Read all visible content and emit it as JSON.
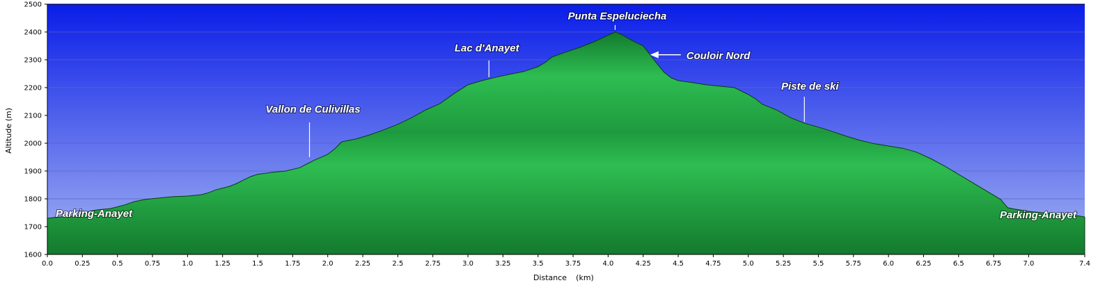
{
  "chart_data": {
    "type": "area",
    "xlabel": "Distance",
    "xunit": "(km)",
    "ylabel": "Altitude (m)",
    "xlim": [
      0,
      7.4
    ],
    "ylim": [
      1600,
      2500
    ],
    "x_ticks": [
      "0.0",
      "0.25",
      "0.5",
      "0.75",
      "1.0",
      "1.25",
      "1.5",
      "1.75",
      "2.0",
      "2.25",
      "2.5",
      "2.75",
      "3.0",
      "3.25",
      "3.5",
      "3.75",
      "4.0",
      "4.25",
      "4.5",
      "4.75",
      "5.0",
      "5.25",
      "5.5",
      "5.75",
      "6.0",
      "6.25",
      "6.5",
      "6.75",
      "7.0",
      "7.4"
    ],
    "x_tick_values": [
      0,
      0.25,
      0.5,
      0.75,
      1.0,
      1.25,
      1.5,
      1.75,
      2.0,
      2.25,
      2.5,
      2.75,
      3.0,
      3.25,
      3.5,
      3.75,
      4.0,
      4.25,
      4.5,
      4.75,
      5.0,
      5.25,
      5.5,
      5.75,
      6.0,
      6.25,
      6.5,
      6.75,
      7.0,
      7.4
    ],
    "y_ticks": [
      1600,
      1700,
      1800,
      1900,
      2000,
      2100,
      2200,
      2300,
      2400,
      2500
    ],
    "grid": true,
    "colors": {
      "sky_top": "#0a1de8",
      "sky_bottom": "#a4b4f2",
      "fill_light": "#2ebd52",
      "fill_dark": "#137a2e",
      "outline": "#0a3a12",
      "grid": "#5a63c4"
    },
    "x": [
      0.0,
      0.05,
      0.1,
      0.2,
      0.3,
      0.35,
      0.45,
      0.55,
      0.62,
      0.7,
      0.8,
      0.9,
      1.0,
      1.1,
      1.15,
      1.2,
      1.3,
      1.35,
      1.4,
      1.45,
      1.5,
      1.6,
      1.7,
      1.8,
      1.85,
      1.9,
      2.0,
      2.05,
      2.1,
      2.2,
      2.3,
      2.4,
      2.5,
      2.6,
      2.7,
      2.8,
      2.9,
      3.0,
      3.1,
      3.2,
      3.3,
      3.4,
      3.5,
      3.55,
      3.6,
      3.7,
      3.8,
      3.9,
      4.0,
      4.05,
      4.1,
      4.15,
      4.2,
      4.25,
      4.3,
      4.35,
      4.4,
      4.45,
      4.5,
      4.6,
      4.7,
      4.8,
      4.9,
      5.0,
      5.05,
      5.1,
      5.2,
      5.3,
      5.4,
      5.5,
      5.6,
      5.7,
      5.8,
      5.9,
      6.0,
      6.1,
      6.2,
      6.3,
      6.4,
      6.5,
      6.6,
      6.7,
      6.8,
      6.85,
      6.9,
      7.0,
      7.1,
      7.2,
      7.3,
      7.4
    ],
    "values": [
      1730,
      1733,
      1735,
      1738,
      1755,
      1760,
      1765,
      1778,
      1790,
      1798,
      1803,
      1808,
      1810,
      1815,
      1822,
      1832,
      1845,
      1855,
      1868,
      1880,
      1888,
      1895,
      1900,
      1912,
      1925,
      1938,
      1960,
      1980,
      2005,
      2015,
      2030,
      2048,
      2068,
      2092,
      2120,
      2142,
      2178,
      2210,
      2225,
      2237,
      2248,
      2258,
      2275,
      2290,
      2310,
      2328,
      2345,
      2365,
      2388,
      2400,
      2390,
      2375,
      2362,
      2350,
      2318,
      2285,
      2255,
      2235,
      2225,
      2218,
      2210,
      2205,
      2200,
      2175,
      2160,
      2140,
      2120,
      2092,
      2072,
      2058,
      2042,
      2025,
      2010,
      1998,
      1990,
      1982,
      1968,
      1945,
      1918,
      1888,
      1858,
      1828,
      1798,
      1768,
      1763,
      1755,
      1750,
      1747,
      1743,
      1735
    ],
    "annotations": [
      {
        "label": "Parking-Anayet",
        "x": 0.0,
        "y": 1730
      },
      {
        "label": "Vallon de Culivillas",
        "x": 1.87,
        "y": 1935
      },
      {
        "label": "Lac d'Anayet",
        "x": 3.15,
        "y": 2230
      },
      {
        "label": "Punta Espeluciecha",
        "x": 4.05,
        "y": 2400
      },
      {
        "label": "Couloir Nord",
        "x": 4.3,
        "y": 2318
      },
      {
        "label": "Piste de ski",
        "x": 5.4,
        "y": 2072
      },
      {
        "label": "Parking-Anayet",
        "x": 7.4,
        "y": 1735
      }
    ]
  }
}
